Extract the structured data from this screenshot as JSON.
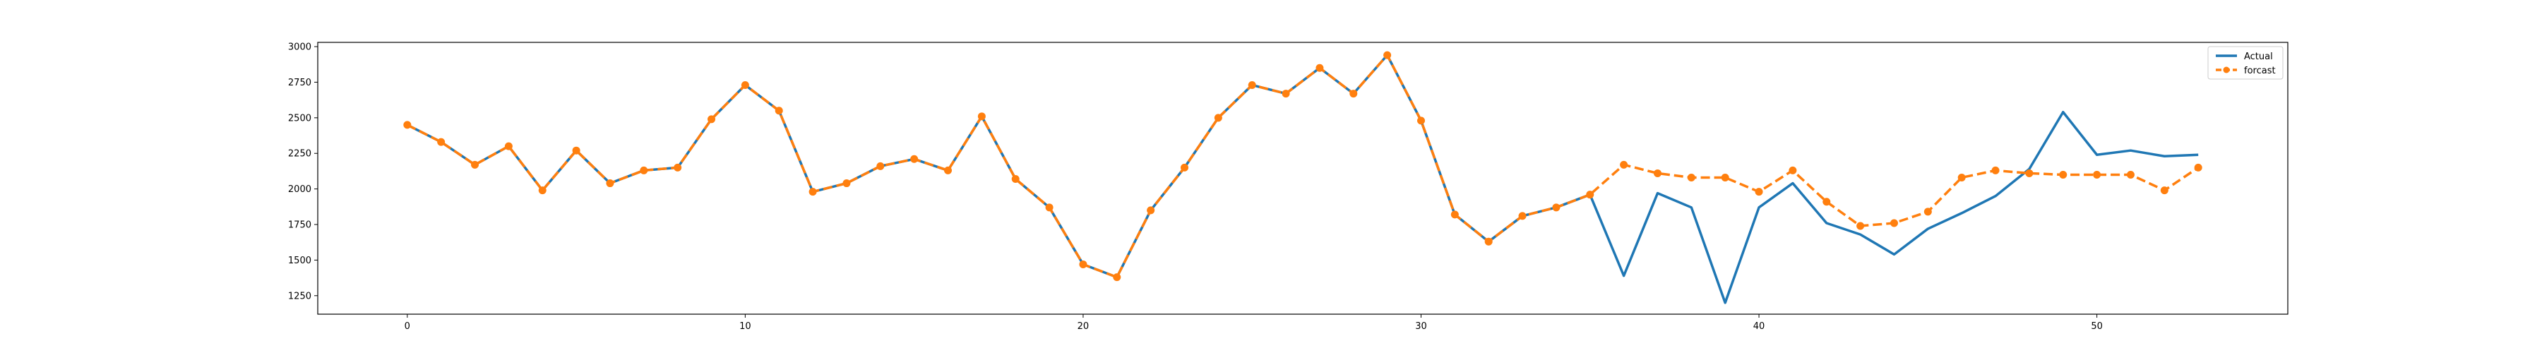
{
  "chart_data": {
    "type": "line",
    "title": "",
    "xlabel": "",
    "ylabel": "",
    "xlim": [
      -2.65,
      55.65
    ],
    "ylim": [
      1120,
      3030
    ],
    "x_ticks": [
      0,
      10,
      20,
      30,
      40,
      50
    ],
    "y_ticks": [
      1250,
      1500,
      1750,
      2000,
      2250,
      2500,
      2750,
      3000
    ],
    "grid": false,
    "legend_position": "top-right",
    "series": [
      {
        "name": "Actual",
        "color": "#1f77b4",
        "style": "solid",
        "marker": "none",
        "x": [
          0,
          1,
          2,
          3,
          4,
          5,
          6,
          7,
          8,
          9,
          10,
          11,
          12,
          13,
          14,
          15,
          16,
          17,
          18,
          19,
          20,
          21,
          22,
          23,
          24,
          25,
          26,
          27,
          28,
          29,
          30,
          31,
          32,
          33,
          34,
          35,
          36,
          37,
          38,
          39,
          40,
          41,
          42,
          43,
          44,
          45,
          46,
          47,
          48,
          49,
          50,
          51,
          52,
          53
        ],
        "values": [
          2450,
          2330,
          2170,
          2300,
          1990,
          2270,
          2040,
          2130,
          2150,
          2490,
          2730,
          2550,
          1980,
          2040,
          2160,
          2210,
          2130,
          2510,
          2070,
          1870,
          1470,
          1380,
          1850,
          2150,
          2500,
          2730,
          2670,
          2850,
          2670,
          2940,
          2480,
          1820,
          1630,
          1810,
          1870,
          1960,
          1390,
          1970,
          1870,
          1200,
          1870,
          2040,
          1760,
          1680,
          1540,
          1720,
          1830,
          1950,
          2140,
          2540,
          2240,
          2270,
          2230,
          2240
        ]
      },
      {
        "name": "forcast",
        "color": "#ff7f0e",
        "style": "dashed",
        "marker": "circle",
        "x": [
          0,
          1,
          2,
          3,
          4,
          5,
          6,
          7,
          8,
          9,
          10,
          11,
          12,
          13,
          14,
          15,
          16,
          17,
          18,
          19,
          20,
          21,
          22,
          23,
          24,
          25,
          26,
          27,
          28,
          29,
          30,
          31,
          32,
          33,
          34,
          35,
          36,
          37,
          38,
          39,
          40,
          41,
          42,
          43,
          44,
          45,
          46,
          47,
          48,
          49,
          50,
          51,
          52,
          53
        ],
        "values": [
          2450,
          2330,
          2170,
          2300,
          1990,
          2270,
          2040,
          2130,
          2150,
          2490,
          2730,
          2550,
          1980,
          2040,
          2160,
          2210,
          2130,
          2510,
          2070,
          1870,
          1470,
          1380,
          1850,
          2150,
          2500,
          2730,
          2670,
          2850,
          2670,
          2940,
          2480,
          1820,
          1630,
          1810,
          1870,
          1960,
          2170,
          2110,
          2080,
          2080,
          1980,
          2130,
          1910,
          1740,
          1760,
          1840,
          2080,
          2130,
          2110,
          2100,
          2100,
          2100,
          1990,
          2150
        ]
      }
    ]
  }
}
